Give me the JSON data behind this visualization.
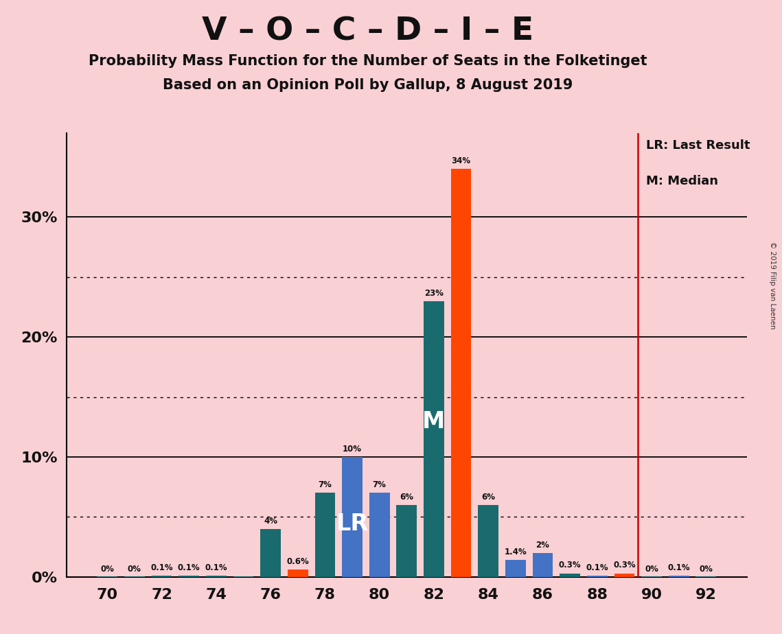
{
  "title": "V – O – C – D – I – E",
  "subtitle1": "Probability Mass Function for the Number of Seats in the Folketinget",
  "subtitle2": "Based on an Opinion Poll by Gallup, 8 August 2019",
  "copyright": "© 2019 Filip van Laenen",
  "background_color": "#f9d0d4",
  "seats": [
    70,
    71,
    72,
    73,
    74,
    75,
    76,
    77,
    78,
    79,
    80,
    81,
    82,
    83,
    84,
    85,
    86,
    87,
    88,
    89,
    90,
    91,
    92
  ],
  "values": [
    0.02,
    0.02,
    0.1,
    0.1,
    0.1,
    0.02,
    4.0,
    0.6,
    7.0,
    10.0,
    7.0,
    6.0,
    23.0,
    34.0,
    6.0,
    1.4,
    2.0,
    0.3,
    0.1,
    0.3,
    0.02,
    0.1,
    0.02
  ],
  "labels": [
    "0%",
    "0%",
    "0.1%",
    "0.1%",
    "0.1%",
    "",
    "4%",
    "0.6%",
    "7%",
    "10%",
    "7%",
    "6%",
    "23%",
    "34%",
    "6%",
    "1.4%",
    "2%",
    "0.3%",
    "0.1%",
    "0.3%",
    "0%",
    "0.1%",
    "0%"
  ],
  "colors": [
    "#1a6b6e",
    "#1a6b6e",
    "#1a6b6e",
    "#1a6b6e",
    "#1a6b6e",
    "#1a6b6e",
    "#1a6b6e",
    "#ff4500",
    "#1a6b6e",
    "#4472c4",
    "#4472c4",
    "#1a6b6e",
    "#1a6b6e",
    "#ff4500",
    "#1a6b6e",
    "#4472c4",
    "#4472c4",
    "#1a6b6e",
    "#4472c4",
    "#ff4500",
    "#1a6b6e",
    "#4472c4",
    "#1a6b6e"
  ],
  "median_label_seat": 82,
  "lr_label_seat": 79,
  "last_result_line": 89.5,
  "yticks": [
    0,
    10,
    20,
    30
  ],
  "ylim": [
    0,
    37
  ],
  "xlim": [
    68.5,
    93.5
  ],
  "xticks": [
    70,
    72,
    74,
    76,
    78,
    80,
    82,
    84,
    86,
    88,
    90,
    92
  ],
  "dotted_lines": [
    5,
    15,
    25
  ],
  "solid_lines": [
    10,
    20,
    30
  ],
  "bar_width": 0.75,
  "legend_lr_text": "LR: Last Result",
  "legend_m_text": "M: Median"
}
